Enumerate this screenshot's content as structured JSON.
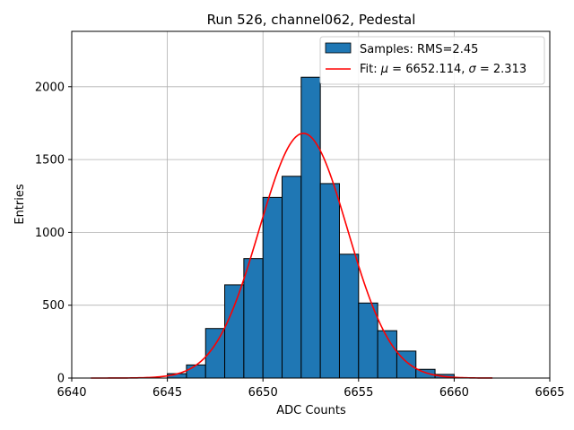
{
  "chart_data": {
    "type": "bar",
    "title": "Run 526, channel062, Pedestal",
    "xlabel": "ADC Counts",
    "ylabel": "Entries",
    "xlim": [
      6640,
      6665
    ],
    "ylim": [
      0,
      2380
    ],
    "xticks": [
      6640,
      6645,
      6650,
      6655,
      6660,
      6665
    ],
    "yticks": [
      0,
      500,
      1000,
      1500,
      2000
    ],
    "grid": true,
    "legend_position": "top-right",
    "bin_width": 1,
    "bins": [
      {
        "left": 6645,
        "value": 30
      },
      {
        "left": 6646,
        "value": 90
      },
      {
        "left": 6647,
        "value": 340
      },
      {
        "left": 6648,
        "value": 640
      },
      {
        "left": 6649,
        "value": 820
      },
      {
        "left": 6650,
        "value": 1240
      },
      {
        "left": 6651,
        "value": 1385
      },
      {
        "left": 6652,
        "value": 2065
      },
      {
        "left": 6653,
        "value": 1335
      },
      {
        "left": 6654,
        "value": 850
      },
      {
        "left": 6655,
        "value": 515
      },
      {
        "left": 6656,
        "value": 325
      },
      {
        "left": 6657,
        "value": 185
      },
      {
        "left": 6658,
        "value": 60
      },
      {
        "left": 6659,
        "value": 25
      }
    ],
    "fit": {
      "mu": 6652.114,
      "sigma": 2.313,
      "amplitude": 1680,
      "x_range": [
        6641,
        6662
      ]
    },
    "legend": {
      "hist_label": "Samples: RMS=2.45",
      "fit_label_prefix": "Fit: ",
      "fit_label_mu": "μ",
      "fit_label_mid": " = 6652.114, ",
      "fit_label_sigma": "σ",
      "fit_label_suffix": " = 2.313"
    },
    "colors": {
      "bar_fill": "#1f77b4",
      "bar_edge": "#000000",
      "fit_line": "#ff0000"
    }
  }
}
